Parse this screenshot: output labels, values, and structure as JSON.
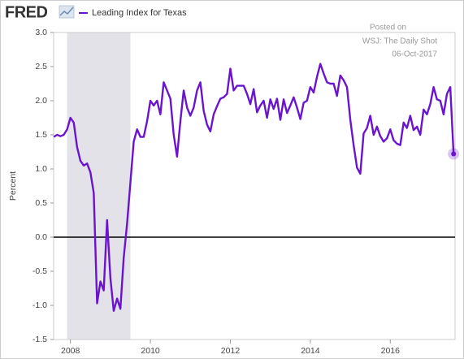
{
  "logo": "FRED",
  "chart_data": {
    "type": "line",
    "y_label": "Percent",
    "annotations": [
      "Posted on",
      "WSJ: The Daily Shot",
      "06-Oct-2017"
    ],
    "xlim": [
      2007.58,
      2017.62
    ],
    "xticks": [
      2008,
      2010,
      2012,
      2014,
      2016
    ],
    "ylim": [
      -1.5,
      3
    ],
    "yticks": [
      {
        "value": -1.5,
        "label": "-1.5"
      },
      {
        "value": -1,
        "label": "-1.0"
      },
      {
        "value": -0.5,
        "label": "-0.5"
      },
      {
        "value": 0,
        "label": "0.0"
      },
      {
        "value": 0.5,
        "label": "0.5"
      },
      {
        "value": 1,
        "label": "1.0"
      },
      {
        "value": 1.5,
        "label": "1.5"
      },
      {
        "value": 2,
        "label": "2.0"
      },
      {
        "value": 2.5,
        "label": "2.5"
      },
      {
        "value": 3,
        "label": "3.0"
      }
    ],
    "grid": false,
    "shaded_ranges": [
      [
        2007.917,
        2009.5
      ]
    ],
    "shade_color": "#e2e2e8",
    "x": [
      2007.583,
      2007.667,
      2007.75,
      2007.833,
      2007.917,
      2008,
      2008.083,
      2008.167,
      2008.25,
      2008.333,
      2008.417,
      2008.5,
      2008.583,
      2008.667,
      2008.75,
      2008.833,
      2008.917,
      2009,
      2009.083,
      2009.167,
      2009.25,
      2009.333,
      2009.417,
      2009.5,
      2009.583,
      2009.667,
      2009.75,
      2009.833,
      2009.917,
      2010,
      2010.083,
      2010.167,
      2010.25,
      2010.333,
      2010.417,
      2010.5,
      2010.583,
      2010.667,
      2010.75,
      2010.833,
      2010.917,
      2011,
      2011.083,
      2011.167,
      2011.25,
      2011.333,
      2011.417,
      2011.5,
      2011.583,
      2011.667,
      2011.75,
      2011.833,
      2011.917,
      2012,
      2012.083,
      2012.167,
      2012.25,
      2012.333,
      2012.417,
      2012.5,
      2012.583,
      2012.667,
      2012.75,
      2012.833,
      2012.917,
      2013,
      2013.083,
      2013.167,
      2013.25,
      2013.333,
      2013.417,
      2013.5,
      2013.583,
      2013.667,
      2013.75,
      2013.833,
      2013.917,
      2014,
      2014.083,
      2014.167,
      2014.25,
      2014.333,
      2014.417,
      2014.5,
      2014.583,
      2014.667,
      2014.75,
      2014.833,
      2014.917,
      2015,
      2015.083,
      2015.167,
      2015.25,
      2015.333,
      2015.417,
      2015.5,
      2015.583,
      2015.667,
      2015.75,
      2015.833,
      2015.917,
      2016,
      2016.083,
      2016.167,
      2016.25,
      2016.333,
      2016.417,
      2016.5,
      2016.583,
      2016.667,
      2016.75,
      2016.833,
      2016.917,
      2017,
      2017.083,
      2017.167,
      2017.25,
      2017.333,
      2017.417,
      2017.5,
      2017.583
    ],
    "series": [
      {
        "name": "Leading Index for Texas",
        "color": "#6a14cf",
        "values": [
          1.47,
          1.5,
          1.48,
          1.5,
          1.58,
          1.75,
          1.68,
          1.32,
          1.12,
          1.05,
          1.08,
          0.95,
          0.65,
          -0.97,
          -0.65,
          -0.78,
          0.25,
          -0.6,
          -1.08,
          -0.9,
          -1.05,
          -0.3,
          0.2,
          0.8,
          1.4,
          1.58,
          1.47,
          1.47,
          1.7,
          2.0,
          1.93,
          2.0,
          1.8,
          2.27,
          2.15,
          2.03,
          1.5,
          1.18,
          1.7,
          2.15,
          1.9,
          1.78,
          1.9,
          2.15,
          2.27,
          1.85,
          1.65,
          1.55,
          1.8,
          1.92,
          2.03,
          2.05,
          2.1,
          2.47,
          2.15,
          2.22,
          2.22,
          2.22,
          2.1,
          1.95,
          2.17,
          1.83,
          1.93,
          2.0,
          1.75,
          2.02,
          1.88,
          2.03,
          1.72,
          2.02,
          1.82,
          1.93,
          2.05,
          1.9,
          1.73,
          1.97,
          2.0,
          2.2,
          2.12,
          2.35,
          2.54,
          2.4,
          2.27,
          2.25,
          2.25,
          2.07,
          2.37,
          2.3,
          2.2,
          1.72,
          1.35,
          1.02,
          0.93,
          1.52,
          1.6,
          1.78,
          1.5,
          1.62,
          1.48,
          1.4,
          1.45,
          1.58,
          1.42,
          1.37,
          1.35,
          1.68,
          1.6,
          1.78,
          1.57,
          1.62,
          1.5,
          1.87,
          1.8,
          1.95,
          2.2,
          2.02,
          2.0,
          1.8,
          2.1,
          2.2,
          1.22
        ]
      }
    ]
  }
}
